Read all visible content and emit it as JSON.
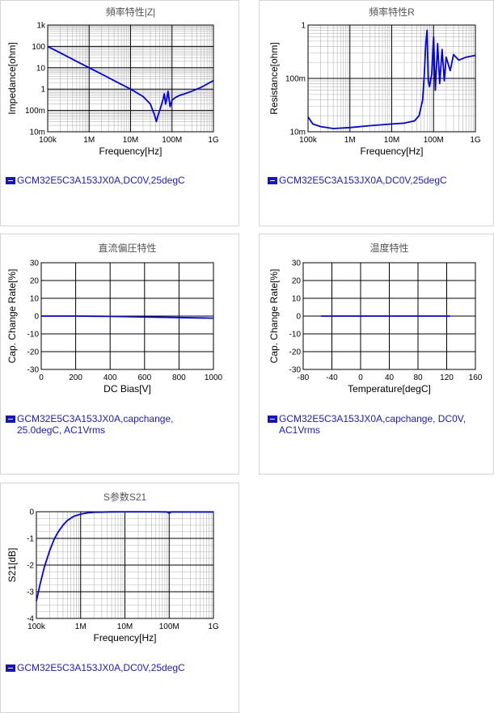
{
  "chart_data": [
    {
      "id": "impedance",
      "type": "line",
      "title": "頻率特性|Z|",
      "xlabel": "Frequency[Hz]",
      "ylabel": "Impedance[ohm]",
      "xscale": "log",
      "yscale": "log",
      "xlim": [
        100000,
        1000000000
      ],
      "ylim": [
        0.01,
        1000
      ],
      "xticks": [
        "100k",
        "1M",
        "10M",
        "100M",
        "1G"
      ],
      "yticks": [
        "1k",
        "100",
        "10",
        "1",
        "100m",
        "10m"
      ],
      "grid": true,
      "legend": "GCM32E5C3A153JX0A,DC0V,25degC",
      "series": [
        {
          "x": [
            100000,
            200000,
            500000,
            1000000,
            2000000,
            5000000,
            10000000,
            20000000,
            30000000,
            38000000,
            42000000,
            46000000,
            52000000,
            60000000,
            65000000,
            70000000,
            75000000,
            80000000,
            90000000,
            100000000,
            120000000,
            150000000,
            200000000,
            300000000,
            500000000,
            1000000000
          ],
          "y": [
            100,
            50,
            20,
            10,
            5,
            2,
            1,
            0.45,
            0.2,
            0.06,
            0.03,
            0.06,
            0.12,
            0.3,
            0.6,
            0.2,
            0.35,
            0.8,
            0.15,
            0.3,
            0.4,
            0.5,
            0.6,
            0.8,
            1.2,
            2.5
          ]
        }
      ]
    },
    {
      "id": "resistance",
      "type": "line",
      "title": "頻率特性R",
      "xlabel": "Frequency[Hz]",
      "ylabel": "Resistance[ohm]",
      "xscale": "log",
      "yscale": "log",
      "xlim": [
        100000,
        1000000000
      ],
      "ylim": [
        0.01,
        1
      ],
      "xticks": [
        "100k",
        "1M",
        "10M",
        "100M",
        "1G"
      ],
      "yticks": [
        "1",
        "100m",
        "10m"
      ],
      "grid": true,
      "legend": "GCM32E5C3A153JX0A,DC0V,25degC",
      "series": [
        {
          "x": [
            100000,
            130000,
            200000,
            400000,
            1000000,
            3000000,
            10000000,
            20000000,
            35000000,
            45000000,
            55000000,
            60000000,
            65000000,
            70000000,
            75000000,
            80000000,
            90000000,
            100000000,
            110000000,
            125000000,
            140000000,
            160000000,
            180000000,
            200000000,
            250000000,
            300000000,
            400000000,
            600000000,
            1000000000
          ],
          "y": [
            0.019,
            0.014,
            0.0125,
            0.0115,
            0.012,
            0.013,
            0.014,
            0.0145,
            0.016,
            0.02,
            0.04,
            0.12,
            0.45,
            0.8,
            0.09,
            0.07,
            0.12,
            0.6,
            0.06,
            0.45,
            0.08,
            0.35,
            0.09,
            0.25,
            0.14,
            0.28,
            0.22,
            0.25,
            0.27
          ]
        }
      ]
    },
    {
      "id": "dcbias",
      "type": "line",
      "title": "直流偏圧特性",
      "xlabel": "DC Bias[V]",
      "ylabel": "Cap. Change Rate[%]",
      "xscale": "linear",
      "yscale": "linear",
      "xlim": [
        0,
        1000
      ],
      "ylim": [
        -30,
        30
      ],
      "xticks": [
        "0",
        "200",
        "400",
        "600",
        "800",
        "1000"
      ],
      "yticks": [
        "30",
        "20",
        "10",
        "0",
        "-10",
        "-20",
        "-30"
      ],
      "grid": true,
      "legend": "GCM32E5C3A153JX0A,capchange, 25.0degC, AC1Vrms",
      "series": [
        {
          "x": [
            0,
            200,
            400,
            600,
            800,
            1000
          ],
          "y": [
            0,
            0,
            -0.2,
            -0.5,
            -0.8,
            -1.2
          ]
        }
      ]
    },
    {
      "id": "temperature",
      "type": "line",
      "title": "温度特性",
      "xlabel": "Temperature[degC]",
      "ylabel": "Cap. Change Rate[%]",
      "xscale": "linear",
      "yscale": "linear",
      "xlim": [
        -80,
        160
      ],
      "ylim": [
        -30,
        30
      ],
      "xticks": [
        "-80",
        "-40",
        "0",
        "40",
        "80",
        "120",
        "160"
      ],
      "yticks": [
        "30",
        "20",
        "10",
        "0",
        "-10",
        "-20",
        "-30"
      ],
      "grid": true,
      "legend": "GCM32E5C3A153JX0A,capchange, DC0V, AC1Vrms",
      "series": [
        {
          "x": [
            -55,
            0,
            50,
            100,
            125
          ],
          "y": [
            0,
            0,
            0,
            0,
            0
          ]
        }
      ]
    },
    {
      "id": "s21",
      "type": "line",
      "title": "S参数S21",
      "xlabel": "Frequency[Hz]",
      "ylabel": "S21[dB]",
      "xscale": "log",
      "yscale": "linear",
      "xlim": [
        100000,
        1000000000
      ],
      "ylim": [
        -4,
        0
      ],
      "xticks": [
        "100k",
        "1M",
        "10M",
        "100M",
        "1G"
      ],
      "yticks": [
        "0",
        "-1",
        "-2",
        "-3",
        "-4"
      ],
      "grid": true,
      "legend": "GCM32E5C3A153JX0A,DC0V,25degC",
      "series": [
        {
          "x": [
            100000,
            120000,
            150000,
            200000,
            250000,
            300000,
            400000,
            500000,
            700000,
            1000000,
            1500000,
            2000000,
            5000000,
            10000000,
            50000000,
            90000000,
            100000000,
            110000000,
            200000000,
            1000000000
          ],
          "y": [
            -3.35,
            -2.75,
            -2.1,
            -1.45,
            -1.05,
            -0.8,
            -0.5,
            -0.33,
            -0.17,
            -0.09,
            -0.04,
            -0.02,
            -0.005,
            -0.002,
            -0.003,
            -0.01,
            -0.06,
            -0.01,
            -0.01,
            -0.01
          ]
        }
      ]
    }
  ],
  "colors": {
    "line": "#0000ee",
    "legend_text": "#1a1ad0",
    "grid": "#b5b5b5",
    "grid_major": "#000000"
  }
}
